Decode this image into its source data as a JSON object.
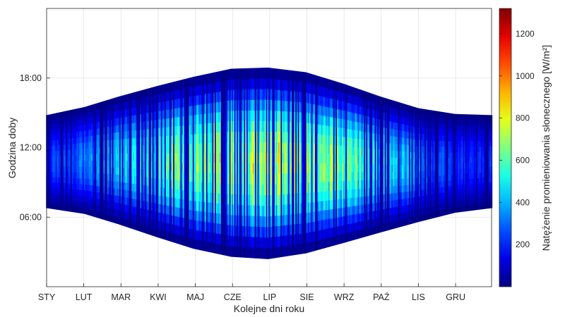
{
  "chart_data": {
    "type": "heatmap",
    "title": "",
    "xlabel": "Kolejne dni roku",
    "ylabel": "Godzina doby",
    "x_categories": [
      "STY",
      "LUT",
      "MAR",
      "KWI",
      "MAJ",
      "CZE",
      "LIP",
      "SIE",
      "WRZ",
      "PAŹ",
      "LIS",
      "GRU"
    ],
    "x_range_days": [
      1,
      365
    ],
    "y_ticks": [
      "06:00",
      "12:00",
      "18:00"
    ],
    "y_tick_hours": [
      6,
      12,
      18
    ],
    "y_range_hours": [
      0,
      24
    ],
    "grid": true,
    "colorbar": {
      "label": "Natężenie promieniowania słonecznego [W/m²]",
      "ticks": [
        200,
        400,
        600,
        800,
        1000,
        1200
      ],
      "range": [
        0,
        1320
      ],
      "colormap": "jet"
    },
    "daylight_envelope": [
      {
        "day": 1,
        "sunrise": 6.8,
        "sunset": 14.8
      },
      {
        "day": 32,
        "sunrise": 6.3,
        "sunset": 15.5
      },
      {
        "day": 60,
        "sunrise": 5.4,
        "sunset": 16.4
      },
      {
        "day": 91,
        "sunrise": 4.3,
        "sunset": 17.3
      },
      {
        "day": 121,
        "sunrise": 3.3,
        "sunset": 18.1
      },
      {
        "day": 152,
        "sunrise": 2.6,
        "sunset": 18.8
      },
      {
        "day": 182,
        "sunrise": 2.4,
        "sunset": 18.9
      },
      {
        "day": 213,
        "sunrise": 2.9,
        "sunset": 18.5
      },
      {
        "day": 244,
        "sunrise": 3.8,
        "sunset": 17.5
      },
      {
        "day": 274,
        "sunrise": 4.7,
        "sunset": 16.4
      },
      {
        "day": 305,
        "sunrise": 5.6,
        "sunset": 15.4
      },
      {
        "day": 335,
        "sunrise": 6.4,
        "sunset": 14.9
      },
      {
        "day": 365,
        "sunrise": 6.8,
        "sunset": 14.8
      }
    ],
    "peak_irradiance_by_month": [
      {
        "month": "STY",
        "value": 300
      },
      {
        "month": "LUT",
        "value": 450
      },
      {
        "month": "MAR",
        "value": 600
      },
      {
        "month": "KWI",
        "value": 750
      },
      {
        "month": "MAJ",
        "value": 850
      },
      {
        "month": "CZE",
        "value": 950
      },
      {
        "month": "LIP",
        "value": 950
      },
      {
        "month": "SIE",
        "value": 850
      },
      {
        "month": "WRZ",
        "value": 700
      },
      {
        "month": "PAŹ",
        "value": 500
      },
      {
        "month": "LIS",
        "value": 330
      },
      {
        "month": "GRU",
        "value": 250
      }
    ]
  }
}
